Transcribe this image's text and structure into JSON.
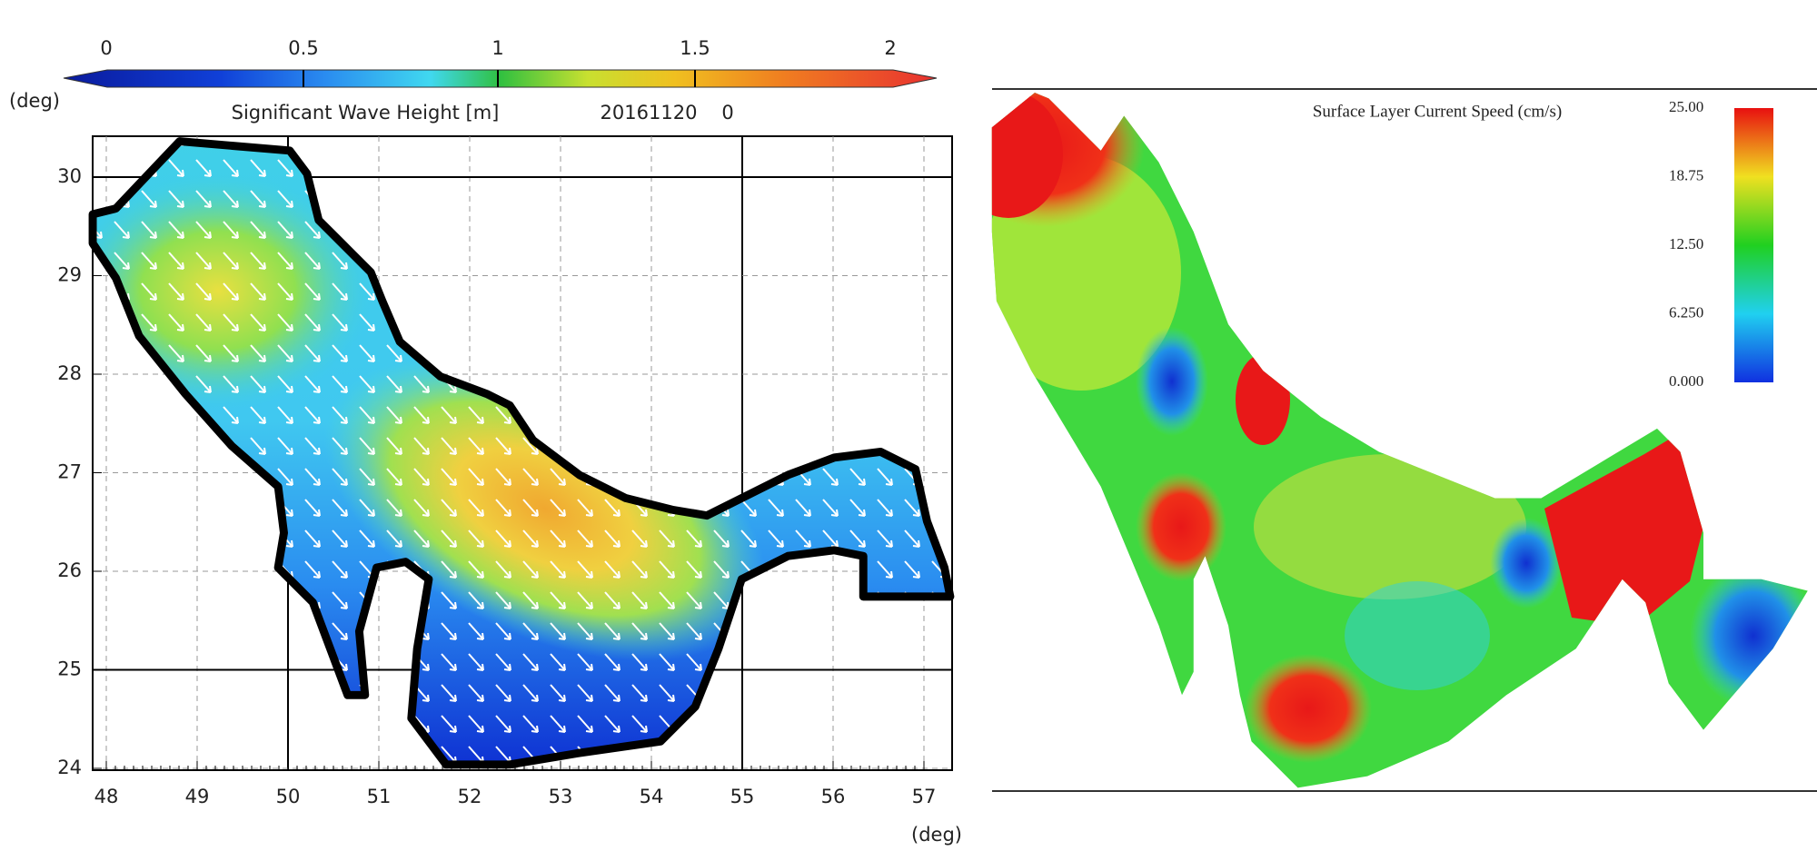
{
  "left_panel": {
    "colorbar_labels": [
      "0",
      "0.5",
      "1",
      "1.5",
      "2"
    ],
    "y_unit": "(deg)",
    "subtitle": "Significant Wave Height [m]",
    "date": "20161120",
    "time": "0",
    "y_ticks": [
      24,
      25,
      26,
      27,
      28,
      29,
      30
    ],
    "x_ticks": [
      48,
      49,
      50,
      51,
      52,
      53,
      54,
      55,
      56,
      57
    ],
    "x_unit": "(deg)"
  },
  "right_panel": {
    "title": "Surface Layer Current Speed (cm/s)",
    "colorbar_labels": [
      "25.00",
      "18.75",
      "12.50",
      "6.250",
      "0.000"
    ]
  }
}
